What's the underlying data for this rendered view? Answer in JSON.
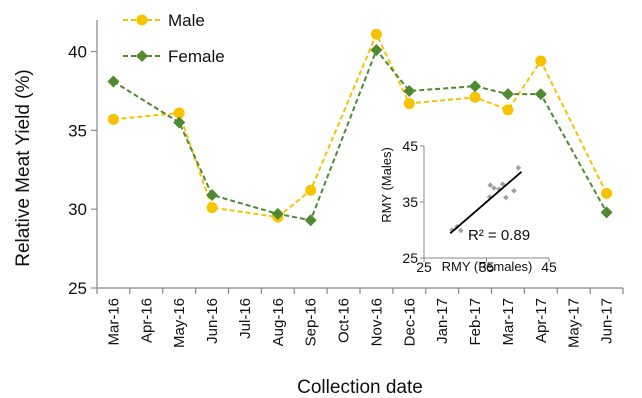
{
  "chart_data": [
    {
      "type": "line",
      "title": "",
      "xlabel": "Collection date",
      "ylabel": "Relative Meat Yield (%)",
      "ylim": [
        25,
        42
      ],
      "yticks": [
        25,
        30,
        35,
        40
      ],
      "grid": false,
      "legend_position": "top-left",
      "categories": [
        "Mar-16",
        "Apr-16",
        "May-16",
        "Jun-16",
        "Jul-16",
        "Aug-16",
        "Sep-16",
        "Oct-16",
        "Nov-16",
        "Dec-16",
        "Jan-17",
        "Feb-17",
        "Mar-17",
        "Apr-17",
        "May-17",
        "Jun-17"
      ],
      "series": [
        {
          "name": "Male",
          "color": "#f7c300",
          "marker": "circle",
          "line_style": "dashed",
          "values": [
            35.7,
            null,
            36.1,
            30.1,
            null,
            29.5,
            31.2,
            null,
            41.1,
            36.7,
            null,
            37.1,
            36.3,
            39.4,
            null,
            31.0
          ]
        },
        {
          "name": "Female",
          "color": "#4f8a32",
          "marker": "diamond",
          "line_style": "dashed",
          "values": [
            38.1,
            null,
            35.5,
            30.9,
            null,
            29.7,
            29.3,
            null,
            40.1,
            37.5,
            null,
            37.8,
            37.3,
            37.3,
            null,
            29.8
          ]
        }
      ]
    },
    {
      "type": "scatter",
      "title": "",
      "xlabel": "RMY (Females)",
      "ylabel": "RMY (Males)",
      "xlim": [
        25,
        45
      ],
      "ylim": [
        25,
        45
      ],
      "xticks": [
        25,
        35,
        45
      ],
      "yticks": [
        25,
        35,
        45
      ],
      "annotation": "R² = 0.89",
      "point_color": "#a0a0a0",
      "trendline_color": "#000000",
      "trendline": [
        [
          29.2,
          29.4
        ],
        [
          40.6,
          40.4
        ]
      ],
      "points": [
        {
          "x": 30.3,
          "y": 30.6
        },
        {
          "x": 29.5,
          "y": 30.0
        },
        {
          "x": 30.9,
          "y": 29.9
        },
        {
          "x": 35.6,
          "y": 38.0
        },
        {
          "x": 36.2,
          "y": 37.5
        },
        {
          "x": 35.5,
          "y": 35.9
        },
        {
          "x": 37.0,
          "y": 37.3
        },
        {
          "x": 37.6,
          "y": 38.2
        },
        {
          "x": 38.1,
          "y": 35.8
        },
        {
          "x": 39.4,
          "y": 37.0
        },
        {
          "x": 40.1,
          "y": 41.1
        }
      ]
    }
  ]
}
